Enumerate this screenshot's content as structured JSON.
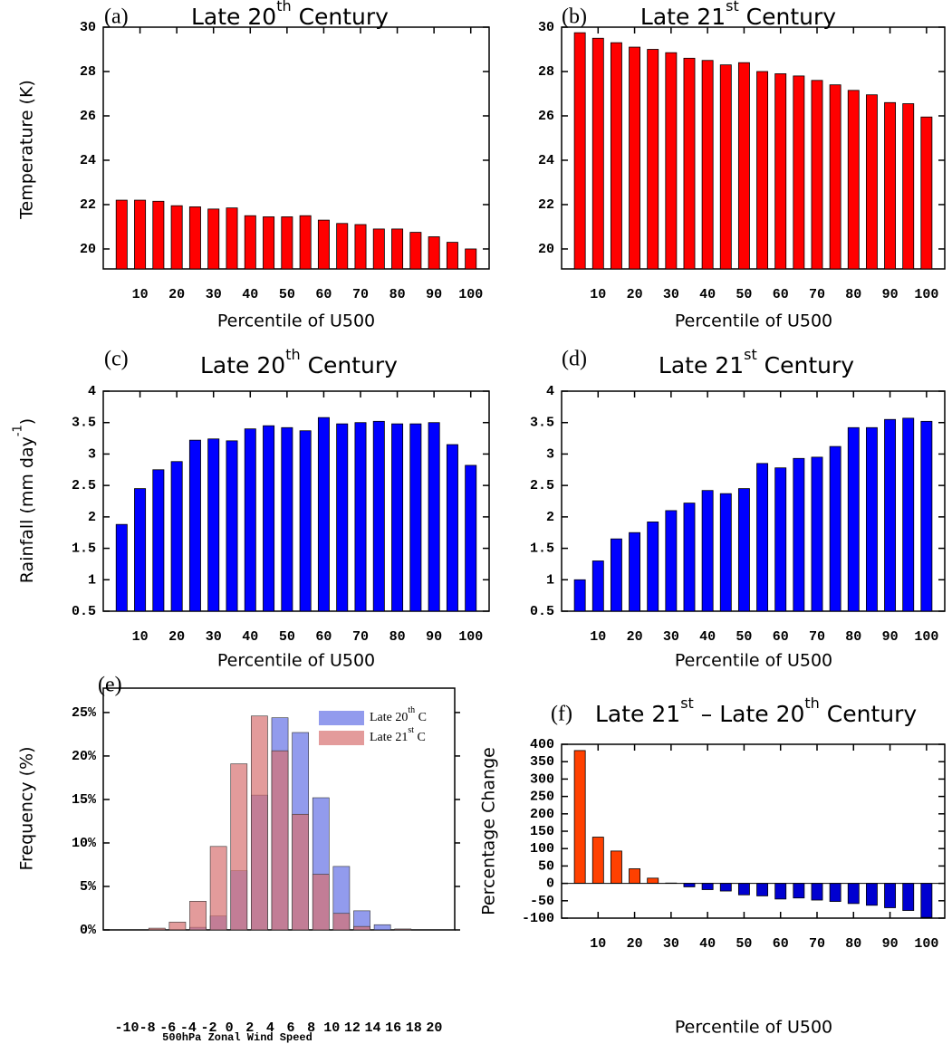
{
  "chart_data": [
    {
      "type": "bar",
      "panel": "(a)",
      "title": [
        "Late 20",
        "th",
        " Century"
      ],
      "ylabel": "Temperature (K)",
      "xlabel": "Percentile of U500",
      "x": [
        5,
        10,
        15,
        20,
        25,
        30,
        35,
        40,
        45,
        50,
        55,
        60,
        65,
        70,
        75,
        80,
        85,
        90,
        95,
        100
      ],
      "values": [
        22.2,
        22.2,
        22.15,
        21.95,
        21.9,
        21.8,
        21.85,
        21.5,
        21.45,
        21.45,
        21.5,
        21.3,
        21.15,
        21.1,
        20.9,
        20.9,
        20.75,
        20.55,
        20.3,
        20.0
      ],
      "color": "#ff0000",
      "xlim": [
        0,
        105
      ],
      "xticks": [
        10,
        20,
        30,
        40,
        50,
        60,
        70,
        80,
        90,
        100
      ],
      "ylim": [
        19.1,
        30
      ],
      "yticks": [
        20,
        22,
        24,
        26,
        28,
        30
      ]
    },
    {
      "type": "bar",
      "panel": "(b)",
      "title": [
        "Late 21",
        "st",
        " Century"
      ],
      "xlabel": "Percentile of U500",
      "x": [
        5,
        10,
        15,
        20,
        25,
        30,
        35,
        40,
        45,
        50,
        55,
        60,
        65,
        70,
        75,
        80,
        85,
        90,
        95,
        100
      ],
      "values": [
        29.75,
        29.5,
        29.3,
        29.1,
        29.0,
        28.85,
        28.6,
        28.5,
        28.3,
        28.4,
        28.0,
        27.9,
        27.8,
        27.6,
        27.4,
        27.15,
        26.95,
        26.6,
        26.55,
        25.95
      ],
      "color": "#ff0000",
      "xlim": [
        0,
        105
      ],
      "xticks": [
        10,
        20,
        30,
        40,
        50,
        60,
        70,
        80,
        90,
        100
      ],
      "ylim": [
        19.1,
        30
      ],
      "yticks": [
        20,
        22,
        24,
        26,
        28,
        30
      ]
    },
    {
      "type": "bar",
      "panel": "(c)",
      "title": [
        "Late 20",
        "th",
        " Century"
      ],
      "ylabel": [
        "Rainfall (mm day",
        "-1",
        ")"
      ],
      "xlabel": "Percentile of U500",
      "x": [
        5,
        10,
        15,
        20,
        25,
        30,
        35,
        40,
        45,
        50,
        55,
        60,
        65,
        70,
        75,
        80,
        85,
        90,
        95,
        100
      ],
      "values": [
        1.88,
        2.45,
        2.75,
        2.88,
        3.22,
        3.24,
        3.21,
        3.4,
        3.45,
        3.42,
        3.37,
        3.58,
        3.48,
        3.5,
        3.52,
        3.48,
        3.48,
        3.5,
        3.15,
        2.82
      ],
      "color": "#0000ff",
      "xlim": [
        0,
        105
      ],
      "xticks": [
        10,
        20,
        30,
        40,
        50,
        60,
        70,
        80,
        90,
        100
      ],
      "ylim": [
        0.5,
        4
      ],
      "yticks": [
        0.5,
        1,
        1.5,
        2,
        2.5,
        3,
        3.5,
        4
      ]
    },
    {
      "type": "bar",
      "panel": "(d)",
      "title": [
        "Late 21",
        "st",
        " Century"
      ],
      "xlabel": "Percentile of U500",
      "x": [
        5,
        10,
        15,
        20,
        25,
        30,
        35,
        40,
        45,
        50,
        55,
        60,
        65,
        70,
        75,
        80,
        85,
        90,
        95,
        100
      ],
      "values": [
        1.0,
        1.3,
        1.65,
        1.75,
        1.92,
        2.1,
        2.22,
        2.42,
        2.37,
        2.45,
        2.85,
        2.78,
        2.93,
        2.95,
        3.12,
        3.42,
        3.42,
        3.55,
        3.57,
        3.52
      ],
      "color": "#0000ff",
      "xlim": [
        0,
        105
      ],
      "xticks": [
        10,
        20,
        30,
        40,
        50,
        60,
        70,
        80,
        90,
        100
      ],
      "ylim": [
        0.5,
        4
      ],
      "yticks": [
        0.5,
        1,
        1.5,
        2,
        2.5,
        3,
        3.5,
        4
      ]
    },
    {
      "type": "histogram",
      "panel": "(e)",
      "ylabel": "Frequency (%)",
      "xlabel": "500hPa Zonal Wind Speed",
      "bins": [
        -10,
        -8,
        -6,
        -4,
        -2,
        0,
        2,
        4,
        6,
        8,
        10,
        12,
        14,
        16,
        18,
        20
      ],
      "series": [
        {
          "name": [
            "Late 20",
            "th",
            " C"
          ],
          "color": "#6470e6",
          "values": [
            0,
            0,
            0,
            0.3,
            1.6,
            6.8,
            15.5,
            24.4,
            22.7,
            15.2,
            7.3,
            2.2,
            0.6,
            0.1,
            0
          ]
        },
        {
          "name": [
            "Late 21",
            "st",
            " C"
          ],
          "color": "#d77070",
          "values": [
            0,
            0.2,
            0.9,
            3.3,
            9.6,
            19.1,
            24.6,
            20.6,
            13.3,
            6.4,
            1.9,
            0.4,
            0,
            0.1,
            0
          ]
        }
      ],
      "xlim": [
        -12.3,
        22
      ],
      "xticks": [
        -10,
        -8,
        -6,
        -4,
        -2,
        0,
        2,
        4,
        6,
        8,
        10,
        12,
        14,
        16,
        18,
        20
      ],
      "ylim": [
        0,
        27.8
      ],
      "yticks": [
        {
          "value": 0,
          "label": "0%"
        },
        {
          "value": 5,
          "label": "5%"
        },
        {
          "value": 10,
          "label": "10%"
        },
        {
          "value": 15,
          "label": "15%"
        },
        {
          "value": 20,
          "label": "20%"
        },
        {
          "value": 25,
          "label": "25%"
        }
      ]
    },
    {
      "type": "bar",
      "panel": "(f)",
      "title": [
        "Late 21",
        "st",
        "  – Late 20",
        "th",
        " Century"
      ],
      "ylabel": "Percentage Change",
      "xlabel": "Percentile of U500",
      "x": [
        5,
        10,
        15,
        20,
        25,
        30,
        35,
        40,
        45,
        50,
        55,
        60,
        65,
        70,
        75,
        80,
        85,
        90,
        95,
        100
      ],
      "values": [
        382,
        133,
        93,
        42,
        15,
        1,
        -10,
        -18,
        -22,
        -33,
        -36,
        -45,
        -42,
        -48,
        -52,
        -58,
        -63,
        -70,
        -78,
        -98
      ],
      "colors": {
        "positive": "#ff4000",
        "negative": "#0000d0"
      },
      "xlim": [
        0,
        105
      ],
      "xticks": [
        10,
        20,
        30,
        40,
        50,
        60,
        70,
        80,
        90,
        100
      ],
      "ylim": [
        -100,
        400
      ],
      "yticks": [
        -100,
        -50,
        0,
        50,
        100,
        150,
        200,
        250,
        300,
        350,
        400
      ]
    }
  ]
}
